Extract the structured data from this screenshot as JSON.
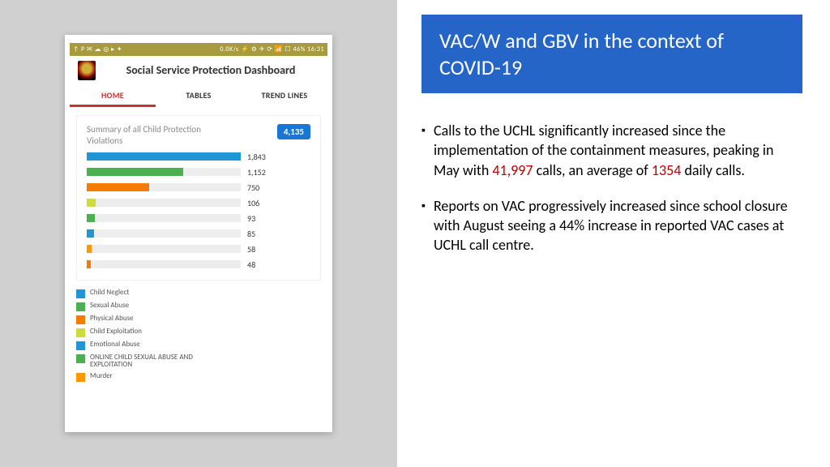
{
  "phone": {
    "status_left": "↑ P ✉ ☁ ◎ ▸ ✦",
    "status_right": "0.0K/s ⚡ ⚙ ✈ ⟳ 📶 ☐ 46% 16:31",
    "app_title": "Social Service Protection Dashboard",
    "tabs": [
      {
        "label": "HOME",
        "active": true
      },
      {
        "label": "TABLES",
        "active": false
      },
      {
        "label": "TREND LINES",
        "active": false
      }
    ],
    "summary": {
      "label": "Summary of all Child Protection Violations",
      "total": "4,135"
    },
    "chart": {
      "max_value": 1843,
      "track_color": "#ededed",
      "bars": [
        {
          "value": 1843,
          "label": "1,843",
          "color": "#2196d6"
        },
        {
          "value": 1152,
          "label": "1,152",
          "color": "#4caf50"
        },
        {
          "value": 750,
          "label": "750",
          "color": "#f57c00"
        },
        {
          "value": 106,
          "label": "106",
          "color": "#cddc39"
        },
        {
          "value": 93,
          "label": "93",
          "color": "#4caf50"
        },
        {
          "value": 85,
          "label": "85",
          "color": "#2196d6"
        },
        {
          "value": 58,
          "label": "58",
          "color": "#ff9800"
        },
        {
          "value": 48,
          "label": "48",
          "color": "#f57c00"
        }
      ]
    },
    "legend": [
      {
        "color": "#2196d6",
        "text": "Child Neglect"
      },
      {
        "color": "#4caf50",
        "text": "Sexual Abuse"
      },
      {
        "color": "#f57c00",
        "text": "Physical Abuse"
      },
      {
        "color": "#cddc39",
        "text": "Child Exploitation"
      },
      {
        "color": "#2196d6",
        "text": "Emotional Abuse"
      },
      {
        "color": "#4caf50",
        "text": "ONLINE CHILD SEXUAL ABUSE AND EXPLOITATION"
      },
      {
        "color": "#ff9800",
        "text": "Murder"
      }
    ]
  },
  "slide": {
    "title": "VAC/W and GBV in the context of COVID-19",
    "title_bg": "#2565c7",
    "bullets": [
      {
        "pre": "Calls to the UCHL significantly increased since the implementation of the containment measures, peaking in May with ",
        "r1": "41,997",
        "mid": " calls, an average of ",
        "r2": "1354",
        "post": " daily calls."
      },
      {
        "pre": "Reports on VAC progressively increased since school closure with August seeing a 44% increase in reported VAC cases at UCHL call centre.",
        "r1": "",
        "mid": "",
        "r2": "",
        "post": ""
      }
    ]
  }
}
